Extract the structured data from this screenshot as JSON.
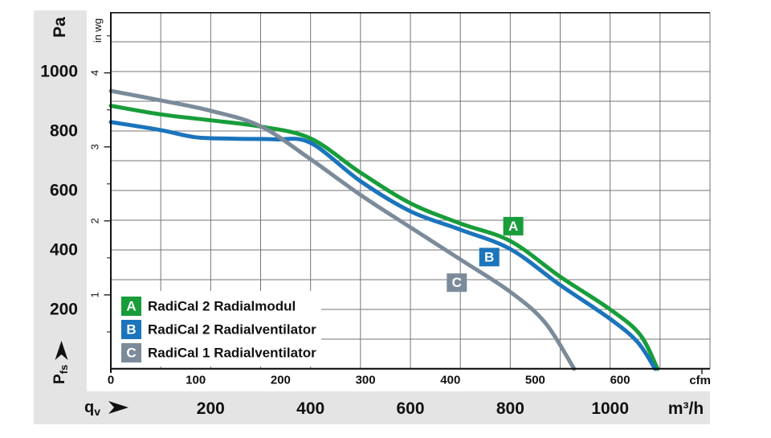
{
  "colors": {
    "background": "#ffffff",
    "band": "#e4e4e4",
    "grid": "#757575",
    "axis": "#111111",
    "legend_background": "#ffffff",
    "legend_letter": "#ffffff"
  },
  "chart_data": {
    "type": "line",
    "title": "",
    "grid": true,
    "legend_position": "bottom-left",
    "x_primary": {
      "unit": "cfm",
      "ticks": [
        0,
        100,
        200,
        300,
        400,
        500,
        600
      ],
      "cfm_to_m3h": 1.7
    },
    "x_secondary": {
      "unit": "m³/h",
      "ticks": [
        200,
        400,
        600,
        800,
        1000
      ],
      "range": [
        0,
        1200
      ],
      "gridline_step": 100
    },
    "y_primary": {
      "unit": "Pa",
      "ticks": [
        200,
        400,
        600,
        800,
        1000
      ],
      "range": [
        0,
        1200
      ],
      "gridline_step": 100
    },
    "y_secondary": {
      "unit": "in wg",
      "ticks": [
        1,
        2,
        3,
        4
      ],
      "minor_ticks": [
        0.5,
        1.5,
        2.5,
        3.5,
        4.5
      ],
      "inwg_to_pa": 248.84
    },
    "x_quantity": {
      "main": "q",
      "sub": "v"
    },
    "y_quantity": {
      "main": "P",
      "sub": "fs"
    },
    "series": [
      {
        "id": "A",
        "name": "RadiCal 2 Radialmodul",
        "color": "#189d3a",
        "points": [
          [
            0,
            885
          ],
          [
            100,
            856
          ],
          [
            200,
            836
          ],
          [
            300,
            815
          ],
          [
            400,
            775
          ],
          [
            500,
            660
          ],
          [
            600,
            557
          ],
          [
            700,
            489
          ],
          [
            800,
            430
          ],
          [
            900,
            310
          ],
          [
            1000,
            200
          ],
          [
            1060,
            115
          ],
          [
            1095,
            0
          ]
        ]
      },
      {
        "id": "B",
        "name": "RadiCal 2 Radialventilator",
        "color": "#1b74bc",
        "points": [
          [
            0,
            830
          ],
          [
            100,
            803
          ],
          [
            170,
            779
          ],
          [
            250,
            774
          ],
          [
            330,
            772
          ],
          [
            400,
            760
          ],
          [
            500,
            631
          ],
          [
            600,
            530
          ],
          [
            700,
            468
          ],
          [
            800,
            403
          ],
          [
            900,
            282
          ],
          [
            1000,
            168
          ],
          [
            1055,
            90
          ],
          [
            1090,
            0
          ]
        ]
      },
      {
        "id": "C",
        "name": "RadiCal 1 Radialventilator",
        "color": "#7b8b9a",
        "points": [
          [
            0,
            935
          ],
          [
            100,
            903
          ],
          [
            200,
            868
          ],
          [
            300,
            816
          ],
          [
            400,
            705
          ],
          [
            500,
            585
          ],
          [
            600,
            476
          ],
          [
            700,
            368
          ],
          [
            800,
            259
          ],
          [
            870,
            155
          ],
          [
            928,
            0
          ]
        ]
      }
    ],
    "curve_labels": [
      {
        "series": "A",
        "q": 806,
        "pa": 480
      },
      {
        "series": "B",
        "q": 758,
        "pa": 376
      },
      {
        "series": "C",
        "q": 693,
        "pa": 290
      }
    ]
  }
}
